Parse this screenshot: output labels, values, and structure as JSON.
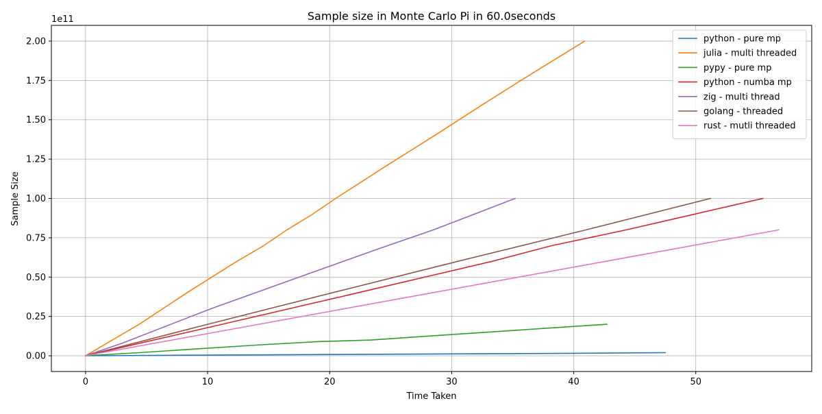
{
  "chart_data": {
    "type": "line",
    "title": "Sample size in Monte Carlo Pi in 60.0seconds",
    "xlabel": "Time Taken",
    "ylabel": "Sample Size",
    "y_offset_label": "1e11",
    "xlim": [
      -2.8,
      59.5
    ],
    "ylim": [
      -0.1,
      2.1
    ],
    "y_scale_note": "values in units of 1e11",
    "x_ticks": [
      0,
      10,
      20,
      30,
      40,
      50
    ],
    "x_tick_labels": [
      "0",
      "10",
      "20",
      "30",
      "40",
      "50"
    ],
    "y_ticks": [
      0,
      0.25,
      0.5,
      0.75,
      1.0,
      1.25,
      1.5,
      1.75,
      2.0
    ],
    "y_tick_labels": [
      "0.00",
      "0.25",
      "0.50",
      "0.75",
      "1.00",
      "1.25",
      "1.50",
      "1.75",
      "2.00"
    ],
    "grid": true,
    "legend_position": "top-right",
    "series": [
      {
        "name": "python - pure mp",
        "color": "#1f77b4",
        "x": [
          0,
          10,
          20,
          30,
          40,
          47.5
        ],
        "y": [
          0,
          0.004,
          0.008,
          0.012,
          0.016,
          0.02
        ]
      },
      {
        "name": "julia - multi threaded",
        "color": "#ff7f0e",
        "x": [
          0,
          4.4,
          8.3,
          12.4,
          14.6,
          16.5,
          18.6,
          20.5,
          24.5,
          28.6,
          32.6,
          36.7,
          40.9
        ],
        "y": [
          0,
          0.2,
          0.4,
          0.6,
          0.7,
          0.8,
          0.9,
          1.0,
          1.2,
          1.4,
          1.6,
          1.8,
          2.0
        ]
      },
      {
        "name": "pypy - pure mp",
        "color": "#2ca02c",
        "x": [
          0,
          4.4,
          9.4,
          14.4,
          19.0,
          23.4,
          28.0,
          33.0,
          37.7,
          42.7
        ],
        "y": [
          0,
          0.02,
          0.045,
          0.07,
          0.09,
          0.1,
          0.125,
          0.15,
          0.175,
          0.2
        ]
      },
      {
        "name": "python - numba mp",
        "color": "#d62728",
        "x": [
          0,
          11.2,
          22.3,
          33.3,
          38.2,
          44.3,
          55.5
        ],
        "y": [
          0,
          0.2,
          0.4,
          0.6,
          0.7,
          0.8,
          1.0
        ]
      },
      {
        "name": "zig - multi thread",
        "color": "#9467bd",
        "x": [
          0,
          3.0,
          10.3,
          17.5,
          24.0,
          28.5,
          35.2
        ],
        "y": [
          0,
          0.08,
          0.3,
          0.5,
          0.68,
          0.8,
          1.0
        ]
      },
      {
        "name": "golang - threaded",
        "color": "#8c564b",
        "x": [
          0,
          10.0,
          20.2,
          30.5,
          41.0,
          51.2
        ],
        "y": [
          0,
          0.2,
          0.4,
          0.6,
          0.8,
          1.0
        ]
      },
      {
        "name": "rust - mutli threaded",
        "color": "#e377c2",
        "x": [
          0,
          14.2,
          28.4,
          42.6,
          56.8
        ],
        "y": [
          0,
          0.2,
          0.4,
          0.6,
          0.8
        ]
      }
    ]
  }
}
